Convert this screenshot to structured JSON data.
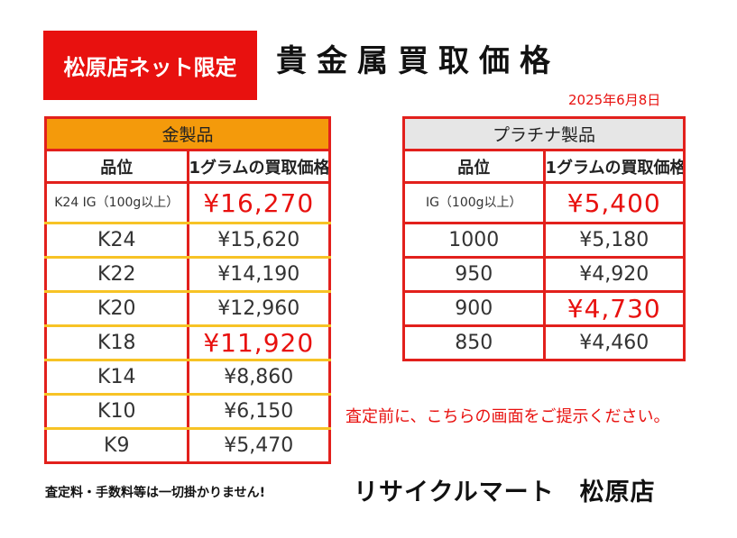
{
  "header": {
    "badge": "松原店ネット限定",
    "title": "貴金属買取価格",
    "date": "2025年6月8日"
  },
  "gold_table": {
    "title": "金製品",
    "col_grade": "品位",
    "col_price": "1グラムの買取価格",
    "rows": [
      {
        "grade": "K24 IG（100g以上）",
        "price": "¥16,270"
      },
      {
        "grade": "K24",
        "price": "¥15,620"
      },
      {
        "grade": "K22",
        "price": "¥14,190"
      },
      {
        "grade": "K20",
        "price": "¥12,960"
      },
      {
        "grade": "K18",
        "price": "¥11,920"
      },
      {
        "grade": "K14",
        "price": "¥8,860"
      },
      {
        "grade": "K10",
        "price": "¥6,150"
      },
      {
        "grade": "K9",
        "price": "¥5,470"
      }
    ]
  },
  "platinum_table": {
    "title": "プラチナ製品",
    "col_grade": "品位",
    "col_price": "1グラムの買取価格",
    "rows": [
      {
        "grade": "IG（100g以上）",
        "price": "¥5,400"
      },
      {
        "grade": "1000",
        "price": "¥5,180"
      },
      {
        "grade": "950",
        "price": "¥4,920"
      },
      {
        "grade": "900",
        "price": "¥4,730"
      },
      {
        "grade": "850",
        "price": "¥4,460"
      }
    ]
  },
  "note": "査定前に、こちらの画面をご提示ください。",
  "footer": {
    "fee": "査定料・手数料等は一切掛かりません!",
    "store": "リサイクルマート　松原店"
  },
  "colors": {
    "accent_red": "#e8110f",
    "gold_header": "#f49a0b",
    "gold_divider": "#f7c325",
    "platinum_header": "#e6e6e6"
  }
}
